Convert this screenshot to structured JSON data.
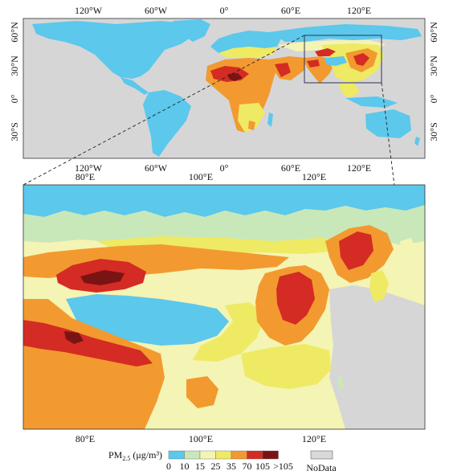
{
  "world_map": {
    "top_lon_labels": [
      "120°W",
      "60°W",
      "0°",
      "60°E",
      "120°E"
    ],
    "bottom_lon_labels": [
      "120°W",
      "60°W",
      "0°",
      "60°E",
      "120°E"
    ],
    "left_lat_labels": [
      "60°N",
      "30°N",
      "0°",
      "30°S"
    ],
    "right_lat_labels": [
      "60°N",
      "30°N",
      "0°",
      "30°S"
    ]
  },
  "zoom_map": {
    "top_lon_labels": [
      "80°E",
      "100°E",
      "120°E"
    ],
    "bottom_lon_labels": [
      "80°E",
      "100°E",
      "120°E"
    ]
  },
  "legend": {
    "title_main": "PM",
    "title_sub": "2.5",
    "title_unit": " (μg/m³)",
    "classes": [
      {
        "color": "#5bc8ec"
      },
      {
        "color": "#c9e8b9"
      },
      {
        "color": "#f4f4b4"
      },
      {
        "color": "#eeea63"
      },
      {
        "color": "#f29a30"
      },
      {
        "color": "#d42b24"
      },
      {
        "color": "#7a1414"
      }
    ],
    "tick_labels": [
      "0",
      "10",
      "15",
      "25",
      "35",
      "70",
      "105",
      ">105"
    ],
    "nodata_label": "NoData",
    "nodata_color": "#d9d9d9"
  }
}
